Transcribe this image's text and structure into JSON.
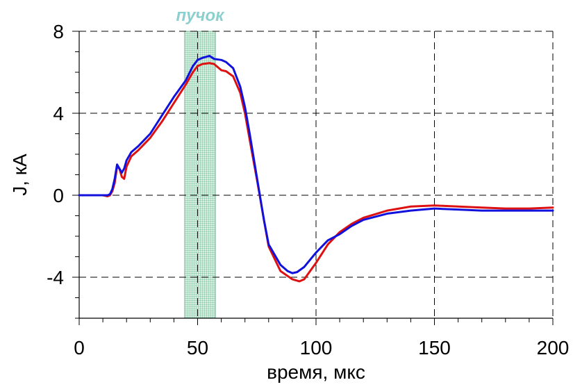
{
  "chart_data": {
    "type": "line",
    "title": "",
    "xlabel": "время, мкс",
    "ylabel": "J, кА",
    "xlim": [
      0,
      200
    ],
    "ylim": [
      -6,
      8
    ],
    "x_ticks": [
      0,
      50,
      100,
      150,
      200
    ],
    "y_ticks": [
      8,
      4,
      0,
      -4
    ],
    "x_minor_step": 10,
    "y_minor_step": 1,
    "grid": "dashed at major ticks",
    "legend": "none",
    "highlight_band": {
      "label": "пучок",
      "x_range": [
        44.5,
        57.5
      ],
      "color": "#2e9b6b",
      "label_color": "#8ccfcf"
    },
    "series": [
      {
        "color": "#dd1111",
        "x": [
          0,
          10,
          12,
          13,
          14,
          15,
          16,
          17,
          18,
          19,
          20,
          22,
          25,
          30,
          35,
          40,
          45,
          48,
          50,
          52,
          55,
          57,
          60,
          62,
          65,
          68,
          70,
          72,
          75,
          78,
          80,
          85,
          90,
          93,
          95,
          100,
          105,
          110,
          115,
          120,
          130,
          140,
          150,
          160,
          170,
          180,
          190,
          200
        ],
        "y": [
          0,
          0,
          -0.05,
          0.0,
          0.2,
          0.6,
          1.4,
          1.3,
          0.9,
          0.8,
          1.4,
          1.9,
          2.2,
          2.8,
          3.6,
          4.5,
          5.4,
          6.0,
          6.3,
          6.4,
          6.45,
          6.4,
          6.1,
          6.05,
          5.8,
          5.0,
          4.0,
          2.7,
          0.8,
          -1.2,
          -2.5,
          -3.7,
          -4.1,
          -4.2,
          -4.1,
          -3.3,
          -2.4,
          -1.8,
          -1.4,
          -1.1,
          -0.75,
          -0.55,
          -0.5,
          -0.55,
          -0.6,
          -0.65,
          -0.65,
          -0.6
        ]
      },
      {
        "color": "#1111dd",
        "x": [
          0,
          10,
          12,
          13,
          14,
          15,
          16,
          17,
          18,
          19,
          20,
          22,
          25,
          30,
          35,
          40,
          45,
          48,
          50,
          52,
          55,
          57,
          60,
          62,
          65,
          68,
          70,
          72,
          75,
          78,
          80,
          85,
          88,
          90,
          92,
          95,
          100,
          105,
          110,
          115,
          120,
          130,
          140,
          150,
          160,
          170,
          180,
          190,
          200
        ],
        "y": [
          0,
          0,
          0,
          0.05,
          0.3,
          0.8,
          1.5,
          1.3,
          1.1,
          1.3,
          1.7,
          2.1,
          2.4,
          3.0,
          3.9,
          4.8,
          5.6,
          6.3,
          6.6,
          6.7,
          6.8,
          6.65,
          6.6,
          6.5,
          6.2,
          5.3,
          4.3,
          3.0,
          0.9,
          -1.2,
          -2.4,
          -3.4,
          -3.7,
          -3.8,
          -3.75,
          -3.5,
          -2.8,
          -2.2,
          -1.9,
          -1.5,
          -1.2,
          -0.9,
          -0.75,
          -0.65,
          -0.7,
          -0.75,
          -0.75,
          -0.75,
          -0.75
        ]
      }
    ]
  }
}
